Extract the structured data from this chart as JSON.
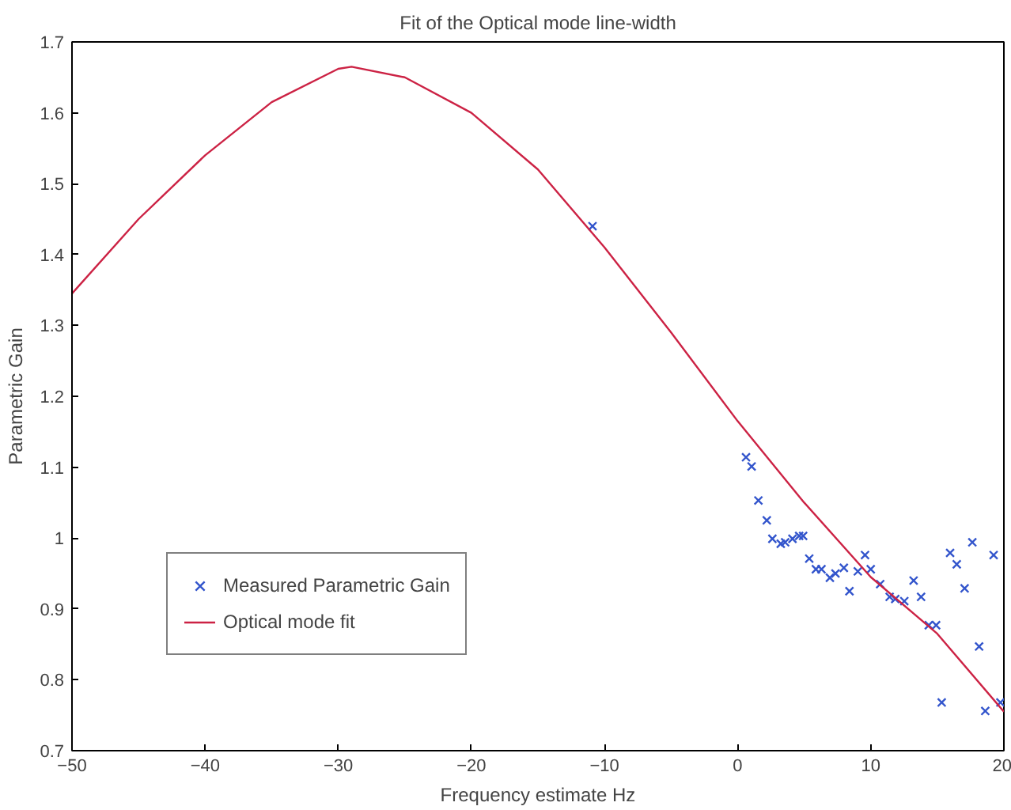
{
  "chart_data": {
    "type": "scatter",
    "title": "Fit of the Optical mode line-width",
    "xlabel": "Frequency estimate Hz",
    "ylabel": "Parametric Gain",
    "xlim": [
      -50,
      20
    ],
    "ylim": [
      0.7,
      1.7
    ],
    "xticks": [
      -50,
      -40,
      -30,
      -20,
      -10,
      0,
      10,
      20
    ],
    "yticks": [
      0.7,
      0.8,
      0.9,
      1,
      1.1,
      1.2,
      1.3,
      1.4,
      1.5,
      1.6,
      1.7
    ],
    "legend": "bottom left",
    "grid": false,
    "series": [
      {
        "name": "Measured Parametric Gain",
        "marker": "cross",
        "color": "#3355cc",
        "x": [
          -10.9,
          0.63,
          1.05,
          1.56,
          2.19,
          2.61,
          3.24,
          3.57,
          4.12,
          4.62,
          4.92,
          5.38,
          5.88,
          6.3,
          6.93,
          7.35,
          7.98,
          8.4,
          9.03,
          9.57,
          10.0,
          10.71,
          11.42,
          11.84,
          12.52,
          13.22,
          13.78,
          14.36,
          14.91,
          15.33,
          15.96,
          16.46,
          17.05,
          17.63,
          18.14,
          18.6,
          19.23,
          19.74
        ],
        "values": [
          1.44,
          1.114,
          1.101,
          1.053,
          1.025,
          0.999,
          0.992,
          0.994,
          0.999,
          1.003,
          1.003,
          0.971,
          0.956,
          0.956,
          0.944,
          0.95,
          0.958,
          0.925,
          0.953,
          0.976,
          0.956,
          0.935,
          0.917,
          0.914,
          0.911,
          0.94,
          0.917,
          0.877,
          0.877,
          0.768,
          0.979,
          0.963,
          0.929,
          0.994,
          0.847,
          0.756,
          0.976,
          0.768
        ]
      },
      {
        "name": "Optical mode fit",
        "type": "line",
        "line_style": "solid",
        "color": "#cc2244",
        "x": [
          -50,
          -45,
          -40,
          -35,
          -30,
          -29,
          -25,
          -20,
          -15,
          -10,
          -5,
          0,
          5,
          10,
          15,
          20
        ],
        "values": [
          1.345,
          1.45,
          1.54,
          1.615,
          1.662,
          1.665,
          1.65,
          1.6,
          1.52,
          1.41,
          1.29,
          1.165,
          1.05,
          0.945,
          0.865,
          0.755
        ]
      }
    ]
  }
}
